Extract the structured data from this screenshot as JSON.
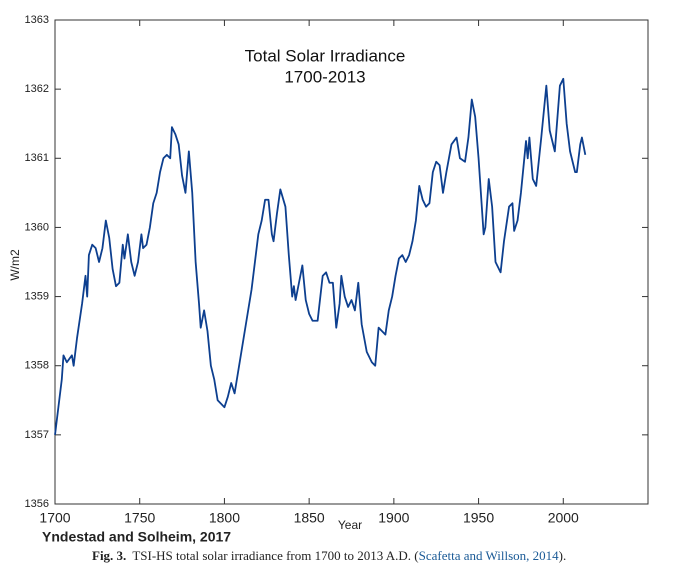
{
  "chart_data": {
    "type": "line",
    "title": "Total Solar Irradiance",
    "subtitle": "1700-2013",
    "x_label": "Year",
    "y_label": "W/m2",
    "annotation": "Yndestad and Solheim, 2017",
    "caption_label": "Fig. 3.",
    "caption": [
      "TSI-HS total solar irradiance from 1700 to 2013 A.D. (",
      "Scafetta and Willson, 2014",
      ")."
    ],
    "color": "#0d3f8f",
    "x": [
      1700,
      1702,
      1704,
      1705,
      1707,
      1710,
      1711,
      1713,
      1716,
      1718,
      1719,
      1720,
      1722,
      1724,
      1726,
      1728,
      1730,
      1732,
      1734,
      1736,
      1738,
      1740,
      1741,
      1743,
      1745,
      1747,
      1749,
      1751,
      1752,
      1754,
      1756,
      1758,
      1760,
      1762,
      1764,
      1766,
      1768,
      1769,
      1771,
      1773,
      1775,
      1777,
      1779,
      1781,
      1783,
      1785,
      1786,
      1788,
      1790,
      1792,
      1794,
      1796,
      1798,
      1800,
      1802,
      1804,
      1806,
      1808,
      1810,
      1812,
      1814,
      1816,
      1818,
      1820,
      1822,
      1824,
      1826,
      1828,
      1829,
      1831,
      1833,
      1836,
      1838,
      1840,
      1841,
      1842,
      1844,
      1846,
      1848,
      1850,
      1852,
      1855,
      1858,
      1860,
      1862,
      1864,
      1866,
      1868,
      1869,
      1871,
      1873,
      1875,
      1877,
      1879,
      1881,
      1884,
      1887,
      1889,
      1891,
      1893,
      1895,
      1897,
      1899,
      1901,
      1903,
      1905,
      1907,
      1909,
      1911,
      1913,
      1915,
      1917,
      1919,
      1921,
      1923,
      1925,
      1927,
      1929,
      1931,
      1934,
      1937,
      1939,
      1942,
      1944,
      1946,
      1948,
      1950,
      1953,
      1954,
      1956,
      1958,
      1960,
      1963,
      1965,
      1968,
      1970,
      1971,
      1973,
      1975,
      1978,
      1979,
      1980,
      1982,
      1984,
      1987,
      1990,
      1992,
      1995,
      1998,
      2000,
      2002,
      2004,
      2007,
      2008,
      2010,
      2011,
      2013
    ],
    "values": [
      1357.0,
      1357.4,
      1357.8,
      1358.15,
      1358.05,
      1358.15,
      1358.0,
      1358.4,
      1358.9,
      1359.3,
      1359.0,
      1359.6,
      1359.75,
      1359.7,
      1359.5,
      1359.7,
      1360.1,
      1359.85,
      1359.4,
      1359.15,
      1359.2,
      1359.75,
      1359.55,
      1359.9,
      1359.5,
      1359.3,
      1359.5,
      1359.9,
      1359.7,
      1359.75,
      1360.0,
      1360.35,
      1360.5,
      1360.8,
      1361.0,
      1361.05,
      1361.0,
      1361.45,
      1361.35,
      1361.2,
      1360.75,
      1360.5,
      1361.1,
      1360.5,
      1359.5,
      1358.9,
      1358.55,
      1358.8,
      1358.5,
      1358.0,
      1357.8,
      1357.5,
      1357.45,
      1357.4,
      1357.55,
      1357.75,
      1357.6,
      1357.9,
      1358.2,
      1358.5,
      1358.8,
      1359.1,
      1359.5,
      1359.9,
      1360.1,
      1360.4,
      1360.4,
      1359.9,
      1359.8,
      1360.2,
      1360.55,
      1360.3,
      1359.6,
      1359.0,
      1359.15,
      1358.95,
      1359.2,
      1359.45,
      1358.95,
      1358.75,
      1358.65,
      1358.65,
      1359.3,
      1359.35,
      1359.2,
      1359.2,
      1358.55,
      1358.9,
      1359.3,
      1359.0,
      1358.85,
      1358.95,
      1358.8,
      1359.2,
      1358.6,
      1358.2,
      1358.05,
      1358.0,
      1358.55,
      1358.5,
      1358.45,
      1358.8,
      1359.0,
      1359.3,
      1359.55,
      1359.6,
      1359.5,
      1359.6,
      1359.8,
      1360.1,
      1360.6,
      1360.4,
      1360.3,
      1360.35,
      1360.8,
      1360.95,
      1360.9,
      1360.5,
      1360.8,
      1361.2,
      1361.3,
      1361.0,
      1360.95,
      1361.3,
      1361.85,
      1361.6,
      1361.0,
      1359.9,
      1360.0,
      1360.7,
      1360.3,
      1359.5,
      1359.35,
      1359.8,
      1360.3,
      1360.35,
      1359.95,
      1360.1,
      1360.5,
      1361.25,
      1361.0,
      1361.3,
      1360.7,
      1360.6,
      1361.3,
      1362.05,
      1361.4,
      1361.1,
      1362.05,
      1362.15,
      1361.5,
      1361.1,
      1360.8,
      1360.8,
      1361.2,
      1361.3,
      1361.05
    ],
    "xlim": [
      1700,
      2050
    ],
    "xticks": [
      1700,
      1750,
      1800,
      1850,
      1900,
      1950,
      2000
    ],
    "ylim": [
      1356,
      1363
    ],
    "yticks": [
      1356,
      1357,
      1358,
      1359,
      1360,
      1361,
      1362,
      1363
    ],
    "grid": false
  }
}
